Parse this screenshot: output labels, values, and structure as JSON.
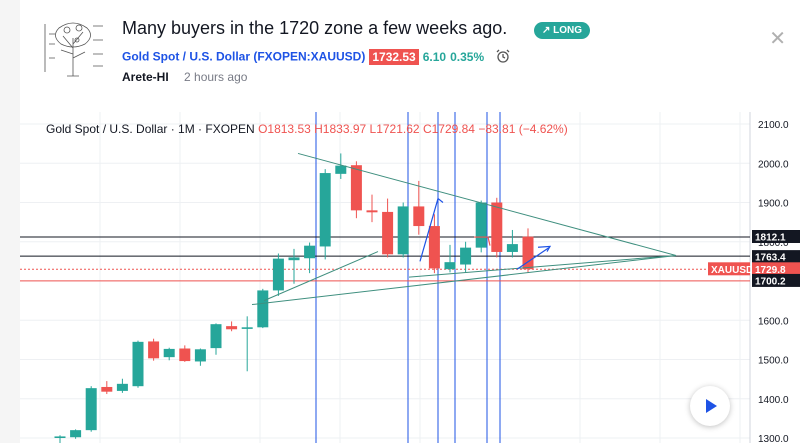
{
  "idea": {
    "title": "Many buyers in the 1720 zone a few weeks ago.",
    "direction": "LONG",
    "symbol_link": "Gold Spot / U.S. Dollar (FXOPEN:XAUUSD)",
    "last_price": "1732.53",
    "change": "6.10",
    "change_pct": "0.35%",
    "author": "Arete-HI",
    "published": "2 hours ago"
  },
  "colors": {
    "up": "#26a69a",
    "down": "#ef5350",
    "accent": "#1e53e5",
    "badge": "#26a69a"
  },
  "chart_legend": {
    "name": "Gold Spot / U.S. Dollar · 1M · FXOPEN",
    "open": "O1813.53",
    "high": "H1833.97",
    "low": "L1721.62",
    "close": "C1729.84",
    "change": "−83.81 (−4.62%)"
  },
  "chart_data": {
    "type": "candlestick",
    "y_ticks": [
      "2100.0",
      "2000.0",
      "1900.0",
      "1800.0",
      "1700.0",
      "1600.0",
      "1500.0",
      "1400.0",
      "1300.0"
    ],
    "ylim": [
      1300,
      2100
    ],
    "candles": [
      {
        "o": 1300,
        "h": 1307,
        "l": 1283,
        "c": 1304
      },
      {
        "o": 1302,
        "h": 1322,
        "l": 1298,
        "c": 1320
      },
      {
        "o": 1320,
        "h": 1432,
        "l": 1316,
        "c": 1427
      },
      {
        "o": 1430,
        "h": 1445,
        "l": 1412,
        "c": 1418
      },
      {
        "o": 1420,
        "h": 1451,
        "l": 1415,
        "c": 1438
      },
      {
        "o": 1432,
        "h": 1548,
        "l": 1428,
        "c": 1545
      },
      {
        "o": 1546,
        "h": 1553,
        "l": 1497,
        "c": 1503
      },
      {
        "o": 1506,
        "h": 1530,
        "l": 1498,
        "c": 1527
      },
      {
        "o": 1528,
        "h": 1536,
        "l": 1494,
        "c": 1496
      },
      {
        "o": 1495,
        "h": 1528,
        "l": 1484,
        "c": 1526
      },
      {
        "o": 1529,
        "h": 1592,
        "l": 1512,
        "c": 1590
      },
      {
        "o": 1585,
        "h": 1597,
        "l": 1572,
        "c": 1577
      },
      {
        "o": 1578,
        "h": 1610,
        "l": 1470,
        "c": 1582
      },
      {
        "o": 1582,
        "h": 1680,
        "l": 1580,
        "c": 1676
      },
      {
        "o": 1676,
        "h": 1770,
        "l": 1662,
        "c": 1757
      },
      {
        "o": 1753,
        "h": 1782,
        "l": 1693,
        "c": 1760
      },
      {
        "o": 1758,
        "h": 1798,
        "l": 1720,
        "c": 1790
      },
      {
        "o": 1788,
        "h": 1985,
        "l": 1755,
        "c": 1975
      },
      {
        "o": 1973,
        "h": 2025,
        "l": 1960,
        "c": 1994
      },
      {
        "o": 1995,
        "h": 2005,
        "l": 1860,
        "c": 1880
      },
      {
        "o": 1880,
        "h": 1920,
        "l": 1850,
        "c": 1875
      },
      {
        "o": 1876,
        "h": 1910,
        "l": 1760,
        "c": 1768
      },
      {
        "o": 1768,
        "h": 1900,
        "l": 1760,
        "c": 1890
      },
      {
        "o": 1890,
        "h": 1955,
        "l": 1818,
        "c": 1840
      },
      {
        "o": 1840,
        "h": 1870,
        "l": 1720,
        "c": 1732
      },
      {
        "o": 1730,
        "h": 1792,
        "l": 1722,
        "c": 1748
      },
      {
        "o": 1742,
        "h": 1800,
        "l": 1722,
        "c": 1785
      },
      {
        "o": 1785,
        "h": 1905,
        "l": 1773,
        "c": 1900
      },
      {
        "o": 1900,
        "h": 1912,
        "l": 1760,
        "c": 1774
      },
      {
        "o": 1774,
        "h": 1830,
        "l": 1760,
        "c": 1794
      },
      {
        "o": 1813,
        "h": 1834,
        "l": 1722,
        "c": 1730
      }
    ],
    "price_labels": [
      {
        "text": "1812.1",
        "value": 1812.1,
        "style": "black"
      },
      {
        "text": "1763.4",
        "value": 1763.4,
        "style": "black"
      },
      {
        "text": "XAUUSD",
        "value": 1729.8,
        "style": "red-tag"
      },
      {
        "text": "1729.8",
        "value": 1729.8,
        "style": "red"
      },
      {
        "text": "1700.2",
        "value": 1700.2,
        "style": "black"
      }
    ],
    "hlines": [
      {
        "value": 1812.1,
        "color": "#131722"
      },
      {
        "value": 1763.4,
        "color": "#131722"
      },
      {
        "value": 1729.8,
        "color": "#ef5350",
        "dashed": true
      },
      {
        "value": 1700.2,
        "color": "#ef5350"
      }
    ]
  }
}
